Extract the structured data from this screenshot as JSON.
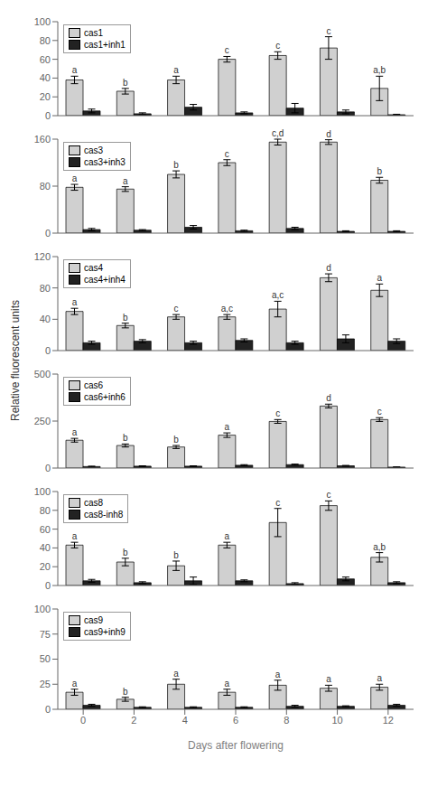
{
  "chart_data": [
    {
      "type": "bar",
      "categories": [
        "0",
        "2",
        "4",
        "6",
        "8",
        "10",
        "12"
      ],
      "series": [
        {
          "name": "cas1",
          "color": "#d0d0d0",
          "values": [
            38,
            26,
            38,
            60,
            64,
            72,
            29
          ],
          "errors": [
            4,
            3,
            4,
            3,
            4,
            12,
            13
          ],
          "letters": [
            "a",
            "b",
            "a",
            "c",
            "c",
            "c",
            "a,b"
          ]
        },
        {
          "name": "cas1+inh1",
          "color": "#222222",
          "values": [
            5,
            2,
            9,
            3,
            8,
            4,
            1
          ],
          "errors": [
            2,
            1,
            3,
            1,
            5,
            2,
            0.5
          ]
        }
      ],
      "ylim": [
        0,
        100
      ],
      "yticks": [
        0,
        20,
        40,
        60,
        80,
        100
      ],
      "grid": false,
      "legend": "upper left",
      "tick_labels": "y"
    },
    {
      "type": "bar",
      "categories": [
        "0",
        "2",
        "4",
        "6",
        "8",
        "10",
        "12"
      ],
      "series": [
        {
          "name": "cas3",
          "color": "#d0d0d0",
          "values": [
            78,
            75,
            100,
            120,
            155,
            155,
            90
          ],
          "errors": [
            5,
            4,
            6,
            5,
            5,
            4,
            5
          ],
          "letters": [
            "a",
            "a",
            "b",
            "c",
            "c,d",
            "d",
            "b"
          ]
        },
        {
          "name": "cas3+inh3",
          "color": "#222222",
          "values": [
            6,
            5,
            10,
            4,
            8,
            3,
            3
          ],
          "errors": [
            2,
            1,
            3,
            1,
            2,
            1,
            1
          ]
        }
      ],
      "ylim": [
        0,
        160
      ],
      "yticks": [
        0,
        80,
        160
      ],
      "grid": false,
      "legend": "upper left",
      "tick_labels": "y"
    },
    {
      "type": "bar",
      "categories": [
        "0",
        "2",
        "4",
        "6",
        "8",
        "10",
        "12"
      ],
      "series": [
        {
          "name": "cas4",
          "color": "#d0d0d0",
          "values": [
            50,
            32,
            43,
            43,
            53,
            93,
            77
          ],
          "errors": [
            4,
            3,
            3,
            3,
            10,
            5,
            8
          ],
          "letters": [
            "a",
            "b",
            "c",
            "a,c",
            "a,c",
            "d",
            "a"
          ]
        },
        {
          "name": "cas4+inh4",
          "color": "#222222",
          "values": [
            10,
            12,
            10,
            13,
            10,
            15,
            12
          ],
          "errors": [
            2,
            2,
            2,
            2,
            2,
            5,
            3
          ]
        }
      ],
      "ylim": [
        0,
        120
      ],
      "yticks": [
        0,
        40,
        80,
        120
      ],
      "grid": false,
      "legend": "upper left",
      "tick_labels": "y"
    },
    {
      "type": "bar",
      "categories": [
        "0",
        "2",
        "4",
        "6",
        "8",
        "10",
        "12"
      ],
      "series": [
        {
          "name": "cas6",
          "color": "#d0d0d0",
          "values": [
            148,
            120,
            112,
            175,
            248,
            330,
            258
          ],
          "errors": [
            10,
            8,
            8,
            12,
            10,
            10,
            10
          ],
          "letters": [
            "a",
            "b",
            "b",
            "a",
            "c",
            "d",
            "c"
          ]
        },
        {
          "name": "cas6+inh6",
          "color": "#222222",
          "values": [
            8,
            10,
            10,
            15,
            18,
            12,
            5
          ],
          "errors": [
            2,
            2,
            2,
            3,
            3,
            2,
            1
          ]
        }
      ],
      "ylim": [
        0,
        500
      ],
      "yticks": [
        0,
        250,
        500
      ],
      "grid": false,
      "legend": "upper left",
      "tick_labels": "y"
    },
    {
      "type": "bar",
      "categories": [
        "0",
        "2",
        "4",
        "6",
        "8",
        "10",
        "12"
      ],
      "series": [
        {
          "name": "cas8",
          "color": "#d0d0d0",
          "values": [
            43,
            25,
            21,
            43,
            67,
            85,
            30
          ],
          "errors": [
            3,
            4,
            5,
            3,
            15,
            5,
            5
          ],
          "letters": [
            "a",
            "b",
            "b",
            "a",
            "c",
            "c",
            "a,b"
          ]
        },
        {
          "name": "cas8-inh8",
          "color": "#222222",
          "values": [
            5,
            3,
            5,
            5,
            2,
            7,
            3
          ],
          "errors": [
            1.5,
            1,
            4,
            1,
            1,
            2,
            1
          ]
        }
      ],
      "ylim": [
        0,
        100
      ],
      "yticks": [
        0,
        20,
        40,
        60,
        80,
        100
      ],
      "grid": false,
      "legend": "upper left",
      "tick_labels": "y"
    },
    {
      "type": "bar",
      "categories": [
        "0",
        "2",
        "4",
        "6",
        "8",
        "10",
        "12"
      ],
      "series": [
        {
          "name": "cas9",
          "color": "#d0d0d0",
          "values": [
            17,
            10,
            25,
            17,
            24,
            21,
            22
          ],
          "errors": [
            3,
            2,
            5,
            3,
            5,
            3,
            3
          ],
          "letters": [
            "a",
            "b",
            "a",
            "a",
            "a",
            "a",
            "a"
          ]
        },
        {
          "name": "cas9+inh9",
          "color": "#222222",
          "values": [
            4,
            2,
            2,
            2,
            3,
            3,
            4
          ],
          "errors": [
            1,
            0.5,
            0.5,
            0.5,
            1,
            0.5,
            1
          ]
        }
      ],
      "ylim": [
        0,
        100
      ],
      "yticks": [
        0,
        25,
        50,
        75,
        100
      ],
      "grid": false,
      "legend": "upper left",
      "xlabel": "Days after flowering"
    }
  ],
  "ylabel": "Relative fluorescent units"
}
